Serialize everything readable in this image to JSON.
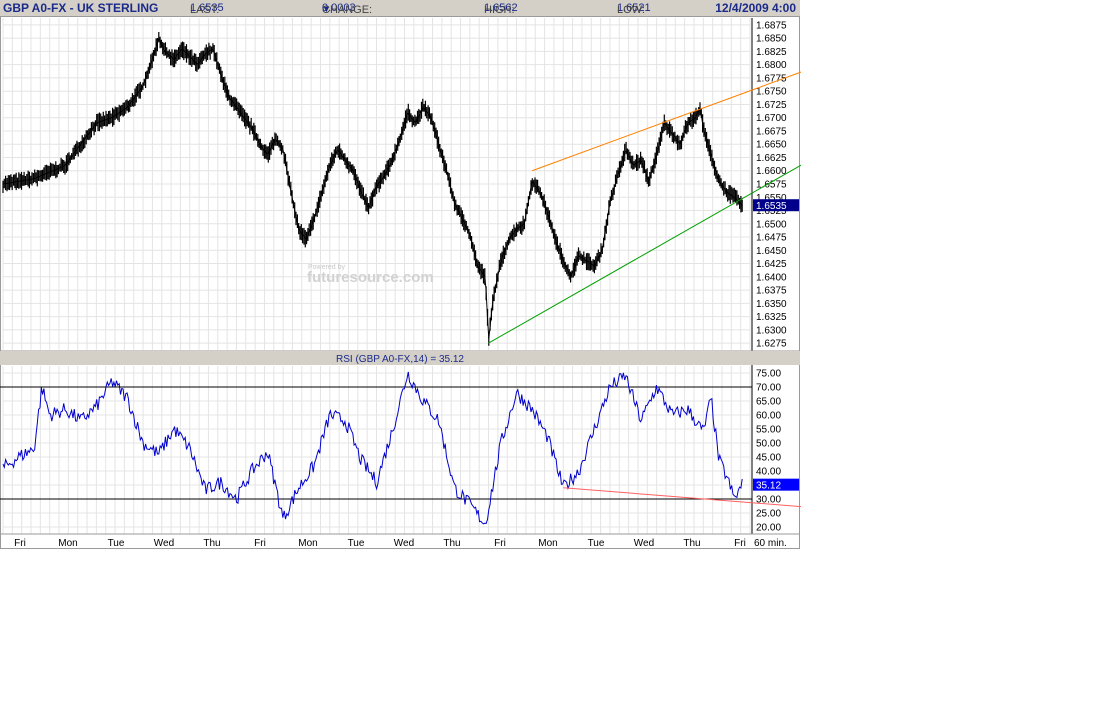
{
  "header": {
    "symbol": "GBP A0-FX - UK STERLING",
    "last_label": "LAST:",
    "last_value": "1.6535",
    "change_label": "CHANGE:",
    "change_arrow": "▼",
    "change_value": "0.0003",
    "high_label": "HIGH:",
    "high_value": "1.6562",
    "low_label": "LOW:",
    "low_value": "1.6521",
    "datetime": "12/4/2009 4:00"
  },
  "watermark": {
    "small": "Powered by",
    "large": "futuresource.com"
  },
  "rsi_title": "RSI (GBP A0-FX,14) = 35.12",
  "interval_label": "60 min.",
  "colors": {
    "price": "#000000",
    "rsi": "#0000cc",
    "upper_line": "#ff8000",
    "lower_line": "#00a000",
    "rsi_trend": "#ff6060",
    "badge_bg": "#00008b",
    "badge_rsi": "#0000ff"
  },
  "chart_data": [
    {
      "type": "line",
      "title": "GBP A0-FX - UK STERLING",
      "ylim": [
        1.6262,
        1.6888
      ],
      "y_ticks": [
        "1.6875",
        "1.6850",
        "1.6825",
        "1.6800",
        "1.6775",
        "1.6750",
        "1.6725",
        "1.6700",
        "1.6675",
        "1.6650",
        "1.6625",
        "1.6600",
        "1.6575",
        "1.6550",
        "1.6525",
        "1.6500",
        "1.6475",
        "1.6450",
        "1.6425",
        "1.6400",
        "1.6375",
        "1.6350",
        "1.6325",
        "1.6300",
        "1.6275"
      ],
      "last_price_label": "1.6535",
      "x_categories": [
        "Fri",
        "Mon",
        "Tue",
        "Wed",
        "Thu",
        "Fri",
        "Mon",
        "Tue",
        "Wed",
        "Thu",
        "Fri",
        "Mon",
        "Tue",
        "Wed",
        "Thu",
        "Fri"
      ],
      "series": [
        {
          "values": [
            [
              0,
              1.6575
            ],
            [
              2,
              1.6585
            ],
            [
              4,
              1.661
            ],
            [
              5,
              1.665
            ],
            [
              6,
              1.669
            ],
            [
              7,
              1.67
            ],
            [
              8,
              1.672
            ],
            [
              9,
              1.676
            ],
            [
              9.6,
              1.681
            ],
            [
              10,
              1.685
            ],
            [
              10.4,
              1.6825
            ],
            [
              11,
              1.681
            ],
            [
              11.5,
              1.683
            ],
            [
              12,
              1.6815
            ],
            [
              12.5,
              1.68
            ],
            [
              13,
              1.682
            ],
            [
              13.5,
              1.683
            ],
            [
              14,
              1.678
            ],
            [
              14.5,
              1.674
            ],
            [
              15,
              1.672
            ],
            [
              15.5,
              1.67
            ],
            [
              16,
              1.668
            ],
            [
              16.5,
              1.665
            ],
            [
              17,
              1.663
            ],
            [
              17.5,
              1.666
            ],
            [
              18,
              1.664
            ],
            [
              18.5,
              1.656
            ],
            [
              19,
              1.649
            ],
            [
              19.5,
              1.647
            ],
            [
              20,
              1.651
            ],
            [
              20.5,
              1.656
            ],
            [
              21,
              1.661
            ],
            [
              21.5,
              1.664
            ],
            [
              22,
              1.662
            ],
            [
              22.5,
              1.66
            ],
            [
              23,
              1.656
            ],
            [
              23.5,
              1.653
            ],
            [
              24,
              1.657
            ],
            [
              24.5,
              1.659
            ],
            [
              25,
              1.662
            ],
            [
              25.5,
              1.666
            ],
            [
              26,
              1.671
            ],
            [
              26.5,
              1.669
            ],
            [
              27,
              1.672
            ],
            [
              27.5,
              1.67
            ],
            [
              28,
              1.665
            ],
            [
              28.5,
              1.66
            ],
            [
              29,
              1.654
            ],
            [
              29.5,
              1.651
            ],
            [
              30,
              1.648
            ],
            [
              30.5,
              1.642
            ],
            [
              31,
              1.64
            ],
            [
              31.2,
              1.628
            ],
            [
              31.5,
              1.636
            ],
            [
              32,
              1.643
            ],
            [
              32.5,
              1.647
            ],
            [
              33,
              1.649
            ],
            [
              33.5,
              1.65
            ],
            [
              34,
              1.658
            ],
            [
              34.5,
              1.656
            ],
            [
              35,
              1.652
            ],
            [
              35.5,
              1.647
            ],
            [
              36,
              1.643
            ],
            [
              36.5,
              1.64
            ],
            [
              37,
              1.644
            ],
            [
              37.5,
              1.643
            ],
            [
              38,
              1.642
            ],
            [
              38.5,
              1.645
            ],
            [
              39,
              1.654
            ],
            [
              39.5,
              1.659
            ],
            [
              40,
              1.664
            ],
            [
              40.5,
              1.661
            ],
            [
              41,
              1.662
            ],
            [
              41.5,
              1.658
            ],
            [
              42,
              1.663
            ],
            [
              42.5,
              1.669
            ],
            [
              43,
              1.667
            ],
            [
              43.5,
              1.665
            ],
            [
              44,
              1.669
            ],
            [
              44.5,
              1.67
            ],
            [
              44.8,
              1.672
            ],
            [
              45,
              1.668
            ],
            [
              45.5,
              1.663
            ],
            [
              46,
              1.658
            ],
            [
              46.5,
              1.656
            ],
            [
              47,
              1.655
            ],
            [
              47.5,
              1.6535
            ]
          ]
        }
      ],
      "annotations": [
        {
          "name": "upper-trendline",
          "from": [
            34,
            1.66
          ],
          "to": [
            49.7,
            1.6805
          ]
        },
        {
          "name": "lower-trendline",
          "from": [
            31.2,
            1.6275
          ],
          "to": [
            49.7,
            1.664
          ]
        }
      ]
    },
    {
      "type": "line",
      "title": "RSI (GBP A0-FX,14) = 35.12",
      "ylim": [
        17.5,
        77.5
      ],
      "y_ticks": [
        "75.00",
        "70.00",
        "65.00",
        "60.00",
        "55.00",
        "50.00",
        "45.00",
        "40.00",
        "35.00",
        "30.00",
        "25.00",
        "20.00"
      ],
      "last_value_label": "35.12",
      "reference_lines": [
        70,
        30
      ],
      "series": [
        {
          "values": [
            [
              0,
              41
            ],
            [
              1,
              45
            ],
            [
              2,
              48
            ],
            [
              2.5,
              70
            ],
            [
              3,
              60
            ],
            [
              4,
              62
            ],
            [
              5,
              58
            ],
            [
              6,
              63
            ],
            [
              7,
              72
            ],
            [
              8,
              66
            ],
            [
              9,
              50
            ],
            [
              10,
              46
            ],
            [
              11,
              55
            ],
            [
              12,
              48
            ],
            [
              13,
              33
            ],
            [
              14,
              36
            ],
            [
              15,
              30
            ],
            [
              16,
              40
            ],
            [
              17,
              47
            ],
            [
              18,
              23
            ],
            [
              19,
              34
            ],
            [
              20,
              42
            ],
            [
              21,
              60
            ],
            [
              22,
              58
            ],
            [
              23,
              44
            ],
            [
              24,
              36
            ],
            [
              25,
              54
            ],
            [
              26,
              75
            ],
            [
              27,
              65
            ],
            [
              28,
              58
            ],
            [
              29,
              34
            ],
            [
              30,
              28
            ],
            [
              31,
              21
            ],
            [
              32,
              50
            ],
            [
              33,
              68
            ],
            [
              34,
              62
            ],
            [
              35,
              52
            ],
            [
              36,
              34
            ],
            [
              37,
              40
            ],
            [
              38,
              55
            ],
            [
              39,
              70
            ],
            [
              40,
              74
            ],
            [
              41,
              58
            ],
            [
              42,
              70
            ],
            [
              43,
              60
            ],
            [
              44,
              62
            ],
            [
              45,
              54
            ],
            [
              45.5,
              66
            ],
            [
              46,
              44
            ],
            [
              46.5,
              38
            ],
            [
              47,
              30
            ],
            [
              47.5,
              35
            ]
          ]
        }
      ],
      "annotations": [
        {
          "name": "rsi-trendline",
          "from": [
            36,
            34
          ],
          "to": [
            49.7,
            26.5
          ]
        }
      ]
    }
  ]
}
